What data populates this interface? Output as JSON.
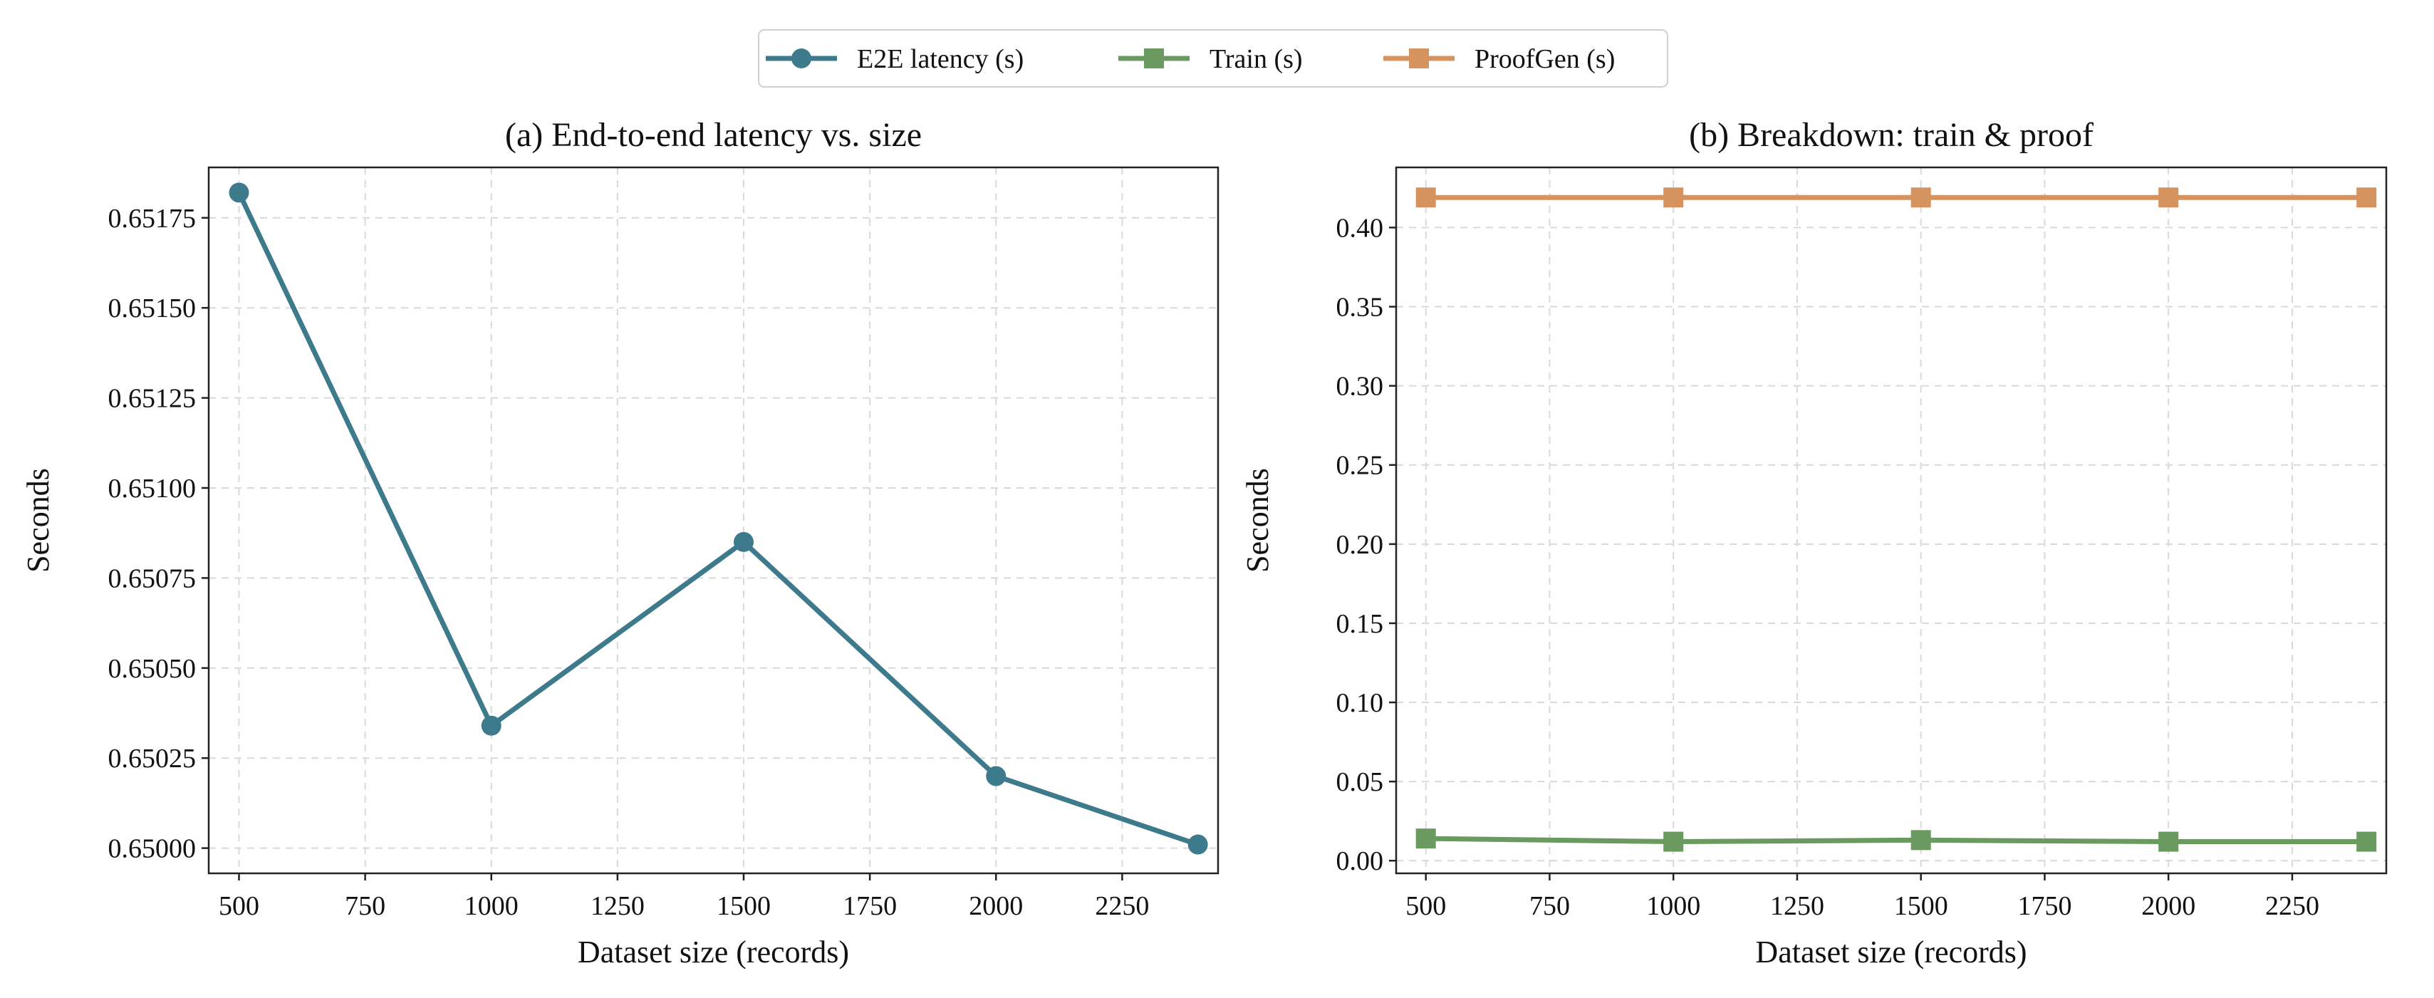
{
  "legend": {
    "placement": "top-center",
    "entries": [
      {
        "label": "E2E latency (s)",
        "color": "#3d7a8c",
        "marker": "circle"
      },
      {
        "label": "Train (s)",
        "color": "#6a9a5f",
        "marker": "square"
      },
      {
        "label": "ProofGen (s)",
        "color": "#d4935f",
        "marker": "square"
      }
    ]
  },
  "chart_data": [
    {
      "type": "line",
      "title": "(a) End-to-end latency vs. size",
      "xlabel": "Dataset size (records)",
      "ylabel": "Seconds",
      "grid": true,
      "xlim": [
        440,
        2440
      ],
      "ylim": [
        0.64993,
        0.65189
      ],
      "xticks": [
        500,
        750,
        1000,
        1250,
        1500,
        1750,
        2000,
        2250
      ],
      "xtick_labels": [
        "500",
        "750",
        "1000",
        "1250",
        "1500",
        "1750",
        "2000",
        "2250"
      ],
      "yticks": [
        0.65,
        0.65025,
        0.6505,
        0.65075,
        0.651,
        0.65125,
        0.6515,
        0.65175
      ],
      "ytick_labels": [
        "0.65000",
        "0.65025",
        "0.65050",
        "0.65075",
        "0.65100",
        "0.65125",
        "0.65150",
        "0.65175"
      ],
      "x": [
        500,
        1000,
        1500,
        2000,
        2400
      ],
      "series": [
        {
          "name": "E2E latency (s)",
          "values": [
            0.65182,
            0.65034,
            0.65085,
            0.6502,
            0.65001
          ],
          "color": "#3d7a8c",
          "marker": "circle"
        }
      ]
    },
    {
      "type": "line",
      "title": "(b) Breakdown: train & proof",
      "xlabel": "Dataset size (records)",
      "ylabel": "Seconds",
      "grid": true,
      "xlim": [
        440,
        2440
      ],
      "ylim": [
        -0.008,
        0.438
      ],
      "xticks": [
        500,
        750,
        1000,
        1250,
        1500,
        1750,
        2000,
        2250
      ],
      "xtick_labels": [
        "500",
        "750",
        "1000",
        "1250",
        "1500",
        "1750",
        "2000",
        "2250"
      ],
      "yticks": [
        0,
        0.05,
        0.1,
        0.15,
        0.2,
        0.25,
        0.3,
        0.35,
        0.4
      ],
      "ytick_labels": [
        "0.00",
        "0.05",
        "0.10",
        "0.15",
        "0.20",
        "0.25",
        "0.30",
        "0.35",
        "0.40"
      ],
      "x": [
        500,
        1000,
        1500,
        2000,
        2400
      ],
      "series": [
        {
          "name": "Train (s)",
          "values": [
            0.014,
            0.012,
            0.013,
            0.012,
            0.012
          ],
          "color": "#6a9a5f",
          "marker": "square"
        },
        {
          "name": "ProofGen (s)",
          "values": [
            0.419,
            0.419,
            0.419,
            0.419,
            0.419
          ],
          "color": "#d4935f",
          "marker": "square"
        }
      ]
    }
  ]
}
